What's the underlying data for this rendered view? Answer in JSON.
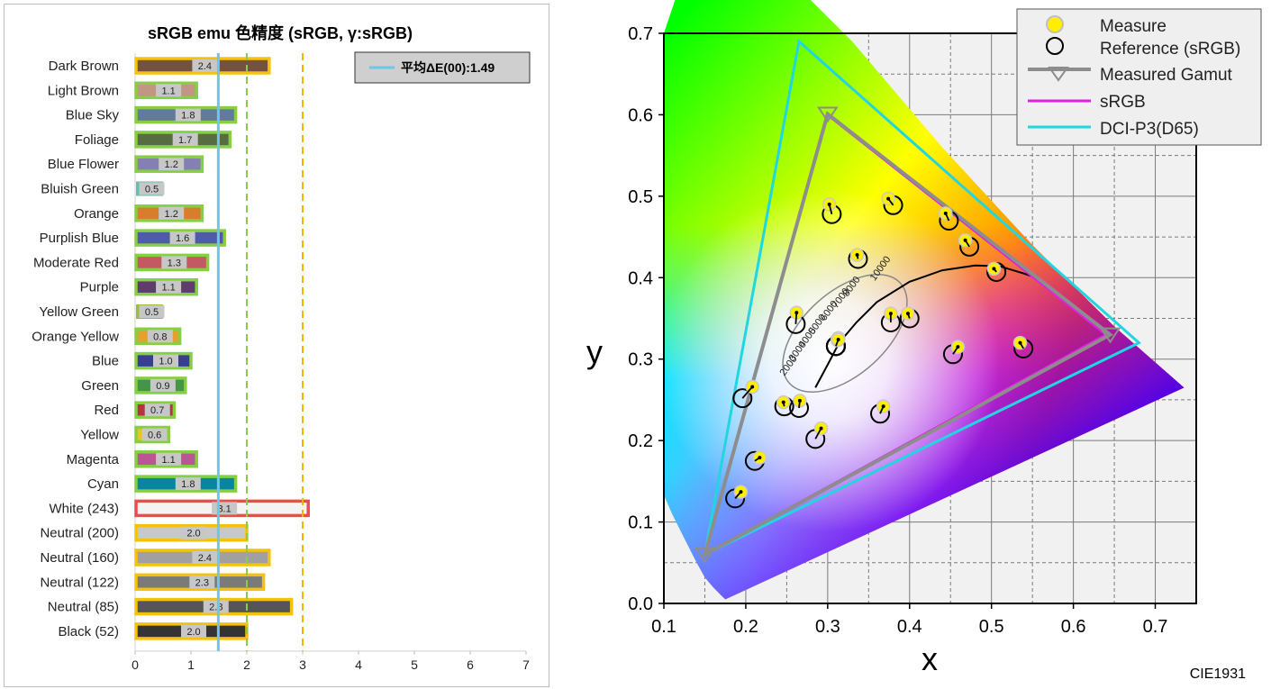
{
  "chart_data": [
    {
      "type": "bar",
      "title": "sRGB emu 色精度 (sRGB, γ:sRGB)",
      "orientation": "horizontal",
      "categories": [
        "Dark Brown",
        "Light Brown",
        "Blue Sky",
        "Foliage",
        "Blue Flower",
        "Bluish Green",
        "Orange",
        "Purplish Blue",
        "Moderate Red",
        "Purple",
        "Yellow Green",
        "Orange Yellow",
        "Blue",
        "Green",
        "Red",
        "Yellow",
        "Magenta",
        "Cyan",
        "White (243)",
        "Neutral (200)",
        "Neutral (160)",
        "Neutral (122)",
        "Neutral (85)",
        "Black (52)"
      ],
      "values": [
        2.4,
        1.1,
        1.8,
        1.7,
        1.2,
        0.5,
        1.2,
        1.6,
        1.3,
        1.1,
        0.5,
        0.8,
        1.0,
        0.9,
        0.7,
        0.6,
        1.1,
        1.8,
        3.1,
        2.0,
        2.4,
        2.3,
        2.8,
        2.0
      ],
      "value_labels": [
        "2.4",
        "1.1",
        "1.8",
        "1.7",
        "1.2",
        "0.5",
        "1.2",
        "1.6",
        "1.3",
        "1.1",
        "0.5",
        "0.8",
        "1.0",
        "0.9",
        "0.7",
        "0.6",
        "1.1",
        "1.8",
        "3.1",
        "2.0",
        "2.4",
        "2.3",
        "2.8",
        "2.0"
      ],
      "bar_colors": [
        "#735244",
        "#c29682",
        "#627a9d",
        "#576c43",
        "#8580b1",
        "#67bdaa",
        "#d67e2c",
        "#505ba6",
        "#c15a63",
        "#5e3c6c",
        "#9dbc40",
        "#e0a32e",
        "#383d96",
        "#469449",
        "#af363c",
        "#e7c71f",
        "#bb5695",
        "#0885a1",
        "#f3f3f2",
        "#c8c8c8",
        "#a0a0a0",
        "#7a7a79",
        "#555555",
        "#343434"
      ],
      "legend": {
        "label": "平均ΔE(00):1.49",
        "position": "top-right"
      },
      "mean": 1.49,
      "reference_lines": [
        1.49,
        2,
        3
      ],
      "xlim": [
        0,
        7
      ],
      "xticks": [
        "0",
        "1",
        "2",
        "3",
        "4",
        "5",
        "6",
        "7"
      ],
      "grid": false
    },
    {
      "type": "scatter",
      "xlabel": "x",
      "ylabel": "y",
      "xlim": [
        0.1,
        0.75
      ],
      "ylim": [
        0,
        0.7
      ],
      "xticks": [
        "0.1",
        "0.2",
        "0.3",
        "0.4",
        "0.5",
        "0.6",
        "0.7"
      ],
      "yticks": [
        "0.0",
        "0.1",
        "0.2",
        "0.3",
        "0.4",
        "0.5",
        "0.6",
        "0.7"
      ],
      "grid": true,
      "footer": "CIE1931",
      "legend": {
        "position": "top-right",
        "entries": [
          "Measure",
          "Reference (sRGB)",
          "Measured Gamut",
          "sRGB",
          "DCI-P3(D65)"
        ]
      },
      "cct_labels": [
        "2000",
        "3000",
        "4000",
        "5000",
        "6000",
        "7000",
        "8000",
        "10000"
      ],
      "series": [
        {
          "name": "Measured Gamut",
          "points": [
            [
              0.645,
              0.33
            ],
            [
              0.3,
              0.601
            ],
            [
              0.15,
              0.06
            ]
          ]
        },
        {
          "name": "sRGB",
          "points": [
            [
              0.64,
              0.33
            ],
            [
              0.3,
              0.6
            ],
            [
              0.15,
              0.06
            ]
          ]
        },
        {
          "name": "DCI-P3(D65)",
          "points": [
            [
              0.68,
              0.32
            ],
            [
              0.265,
              0.69
            ],
            [
              0.15,
              0.06
            ]
          ]
        },
        {
          "name": "Reference (sRGB)",
          "points": [
            [
              0.4,
              0.35
            ],
            [
              0.377,
              0.345
            ],
            [
              0.247,
              0.242
            ],
            [
              0.337,
              0.423
            ],
            [
              0.265,
              0.24
            ],
            [
              0.261,
              0.343
            ],
            [
              0.506,
              0.407
            ],
            [
              0.211,
              0.175
            ],
            [
              0.453,
              0.306
            ],
            [
              0.285,
              0.202
            ],
            [
              0.38,
              0.489
            ],
            [
              0.473,
              0.438
            ],
            [
              0.187,
              0.129
            ],
            [
              0.305,
              0.478
            ],
            [
              0.539,
              0.313
            ],
            [
              0.448,
              0.47
            ],
            [
              0.364,
              0.233
            ],
            [
              0.196,
              0.252
            ],
            [
              0.31,
              0.316
            ],
            [
              0.31,
              0.316
            ],
            [
              0.31,
              0.316
            ],
            [
              0.31,
              0.316
            ],
            [
              0.31,
              0.316
            ],
            [
              0.31,
              0.316
            ]
          ]
        },
        {
          "name": "Measure",
          "points": [
            [
              0.398,
              0.356
            ],
            [
              0.377,
              0.356
            ],
            [
              0.246,
              0.247
            ],
            [
              0.336,
              0.428
            ],
            [
              0.266,
              0.249
            ],
            [
              0.262,
              0.357
            ],
            [
              0.503,
              0.411
            ],
            [
              0.217,
              0.179
            ],
            [
              0.459,
              0.315
            ],
            [
              0.292,
              0.215
            ],
            [
              0.374,
              0.497
            ],
            [
              0.468,
              0.446
            ],
            [
              0.194,
              0.137
            ],
            [
              0.302,
              0.49
            ],
            [
              0.535,
              0.32
            ],
            [
              0.444,
              0.479
            ],
            [
              0.368,
              0.242
            ],
            [
              0.208,
              0.266
            ],
            [
              0.313,
              0.325
            ],
            [
              0.313,
              0.325
            ],
            [
              0.312,
              0.324
            ],
            [
              0.313,
              0.326
            ],
            [
              0.312,
              0.323
            ],
            [
              0.313,
              0.324
            ]
          ]
        }
      ]
    }
  ]
}
